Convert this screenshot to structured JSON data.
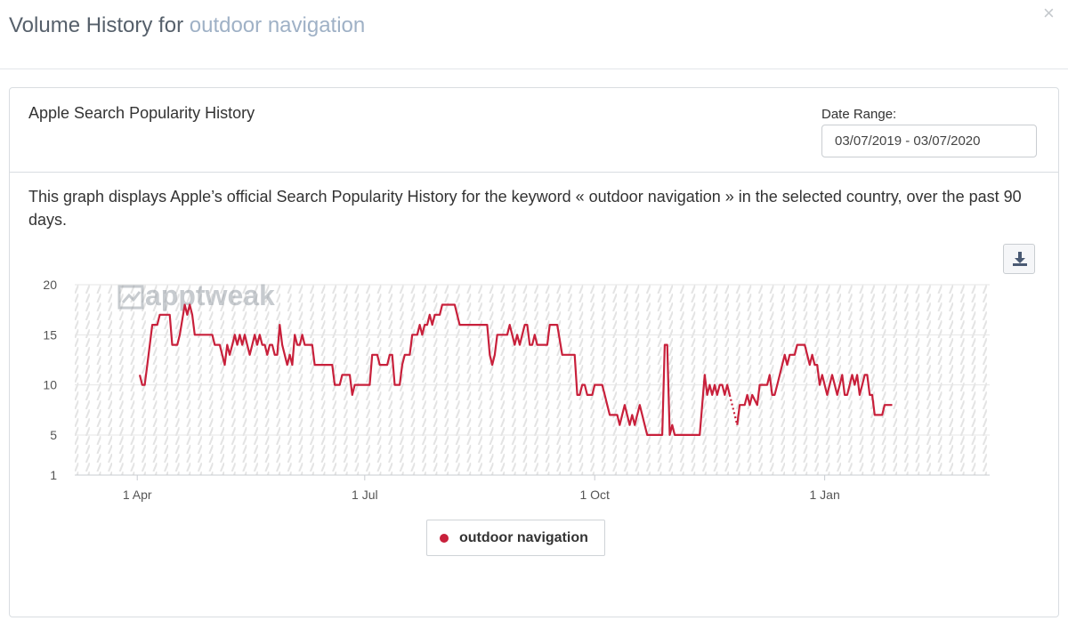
{
  "modal": {
    "title_prefix": "Volume History for",
    "keyword": "outdoor navigation",
    "close_glyph": "×"
  },
  "panel": {
    "title": "Apple Search Popularity History",
    "date_range_label": "Date Range:",
    "date_range_value": "03/07/2019 - 03/07/2020",
    "description": "This graph displays Apple’s official Search Popularity History for the keyword « outdoor navigation » in the selected country, over the past 90 days.",
    "download_icon": "download-icon"
  },
  "watermark": "apptweak",
  "chart_data": {
    "type": "line",
    "x_ticks": [
      {
        "date": "2019-04-01",
        "label": "1 Apr"
      },
      {
        "date": "2019-07-01",
        "label": "1 Jul"
      },
      {
        "date": "2019-10-01",
        "label": "1 Oct"
      },
      {
        "date": "2020-01-01",
        "label": "1 Jan"
      }
    ],
    "y_ticks": [
      1,
      5,
      10,
      15,
      20
    ],
    "ylim": [
      1,
      20
    ],
    "xlim": [
      "2019-03-07",
      "2020-03-07"
    ],
    "grid": "horizontal",
    "legend_position": "bottom-center",
    "series": [
      {
        "name": "outdoor navigation",
        "color": "#c8203b",
        "points": [
          [
            "2019-04-02",
            11
          ],
          [
            "2019-04-03",
            10
          ],
          [
            "2019-04-04",
            10
          ],
          [
            "2019-04-05",
            12
          ],
          [
            "2019-04-07",
            16
          ],
          [
            "2019-04-09",
            16
          ],
          [
            "2019-04-10",
            17
          ],
          [
            "2019-04-14",
            17
          ],
          [
            "2019-04-15",
            14
          ],
          [
            "2019-04-17",
            14
          ],
          [
            "2019-04-18",
            15
          ],
          [
            "2019-04-20",
            18
          ],
          [
            "2019-04-21",
            17
          ],
          [
            "2019-04-22",
            18
          ],
          [
            "2019-04-23",
            17
          ],
          [
            "2019-04-24",
            15
          ],
          [
            "2019-05-01",
            15
          ],
          [
            "2019-05-02",
            14
          ],
          [
            "2019-05-04",
            14
          ],
          [
            "2019-05-05",
            13
          ],
          [
            "2019-05-06",
            12
          ],
          [
            "2019-05-07",
            14
          ],
          [
            "2019-05-08",
            13
          ],
          [
            "2019-05-09",
            14
          ],
          [
            "2019-05-10",
            15
          ],
          [
            "2019-05-11",
            14
          ],
          [
            "2019-05-12",
            15
          ],
          [
            "2019-05-13",
            14
          ],
          [
            "2019-05-14",
            15
          ],
          [
            "2019-05-15",
            14
          ],
          [
            "2019-05-16",
            13
          ],
          [
            "2019-05-17",
            14
          ],
          [
            "2019-05-18",
            15
          ],
          [
            "2019-05-19",
            14
          ],
          [
            "2019-05-20",
            15
          ],
          [
            "2019-05-21",
            14
          ],
          [
            "2019-05-22",
            14
          ],
          [
            "2019-05-23",
            13
          ],
          [
            "2019-05-24",
            14
          ],
          [
            "2019-05-25",
            14
          ],
          [
            "2019-05-26",
            13
          ],
          [
            "2019-05-27",
            13
          ],
          [
            "2019-05-28",
            16
          ],
          [
            "2019-05-29",
            14
          ],
          [
            "2019-05-30",
            13
          ],
          [
            "2019-05-31",
            12
          ],
          [
            "2019-06-01",
            13
          ],
          [
            "2019-06-02",
            12
          ],
          [
            "2019-06-03",
            15
          ],
          [
            "2019-06-04",
            14
          ],
          [
            "2019-06-05",
            14
          ],
          [
            "2019-06-06",
            15
          ],
          [
            "2019-06-07",
            14
          ],
          [
            "2019-06-10",
            14
          ],
          [
            "2019-06-11",
            12
          ],
          [
            "2019-06-18",
            12
          ],
          [
            "2019-06-19",
            10
          ],
          [
            "2019-06-21",
            10
          ],
          [
            "2019-06-22",
            11
          ],
          [
            "2019-06-25",
            11
          ],
          [
            "2019-06-26",
            9
          ],
          [
            "2019-06-27",
            10
          ],
          [
            "2019-07-03",
            10
          ],
          [
            "2019-07-04",
            13
          ],
          [
            "2019-07-06",
            13
          ],
          [
            "2019-07-07",
            12
          ],
          [
            "2019-07-10",
            12
          ],
          [
            "2019-07-11",
            13
          ],
          [
            "2019-07-12",
            13
          ],
          [
            "2019-07-13",
            10
          ],
          [
            "2019-07-15",
            10
          ],
          [
            "2019-07-16",
            12
          ],
          [
            "2019-07-17",
            13
          ],
          [
            "2019-07-19",
            13
          ],
          [
            "2019-07-20",
            15
          ],
          [
            "2019-07-22",
            15
          ],
          [
            "2019-07-23",
            16
          ],
          [
            "2019-07-24",
            15
          ],
          [
            "2019-07-25",
            16
          ],
          [
            "2019-07-26",
            16
          ],
          [
            "2019-07-27",
            17
          ],
          [
            "2019-07-28",
            16
          ],
          [
            "2019-07-29",
            17
          ],
          [
            "2019-07-31",
            17
          ],
          [
            "2019-08-01",
            18
          ],
          [
            "2019-08-06",
            18
          ],
          [
            "2019-08-07",
            17
          ],
          [
            "2019-08-08",
            16
          ],
          [
            "2019-08-19",
            16
          ],
          [
            "2019-08-20",
            13
          ],
          [
            "2019-08-21",
            12
          ],
          [
            "2019-08-22",
            13
          ],
          [
            "2019-08-23",
            15
          ],
          [
            "2019-08-27",
            15
          ],
          [
            "2019-08-28",
            16
          ],
          [
            "2019-08-29",
            15
          ],
          [
            "2019-08-30",
            14
          ],
          [
            "2019-08-31",
            15
          ],
          [
            "2019-09-01",
            14
          ],
          [
            "2019-09-02",
            15
          ],
          [
            "2019-09-03",
            16
          ],
          [
            "2019-09-04",
            16
          ],
          [
            "2019-09-05",
            14
          ],
          [
            "2019-09-06",
            14
          ],
          [
            "2019-09-07",
            15
          ],
          [
            "2019-09-08",
            14
          ],
          [
            "2019-09-12",
            14
          ],
          [
            "2019-09-13",
            16
          ],
          [
            "2019-09-16",
            16
          ],
          [
            "2019-09-18",
            13
          ],
          [
            "2019-09-23",
            13
          ],
          [
            "2019-09-24",
            9
          ],
          [
            "2019-09-25",
            9
          ],
          [
            "2019-09-26",
            10
          ],
          [
            "2019-09-27",
            10
          ],
          [
            "2019-09-28",
            9
          ],
          [
            "2019-09-30",
            9
          ],
          [
            "2019-10-01",
            10
          ],
          [
            "2019-10-04",
            10
          ],
          [
            "2019-10-05",
            9
          ],
          [
            "2019-10-06",
            8
          ],
          [
            "2019-10-07",
            7
          ],
          [
            "2019-10-10",
            7
          ],
          [
            "2019-10-11",
            6
          ],
          [
            "2019-10-12",
            7
          ],
          [
            "2019-10-13",
            8
          ],
          [
            "2019-10-14",
            7
          ],
          [
            "2019-10-15",
            6
          ],
          [
            "2019-10-16",
            7
          ],
          [
            "2019-10-17",
            6
          ],
          [
            "2019-10-18",
            7
          ],
          [
            "2019-10-19",
            8
          ],
          [
            "2019-10-20",
            7
          ],
          [
            "2019-10-21",
            6
          ],
          [
            "2019-10-22",
            5
          ],
          [
            "2019-10-28",
            5
          ],
          [
            "2019-10-29",
            14
          ],
          [
            "2019-10-30",
            14
          ],
          [
            "2019-10-31",
            5
          ],
          [
            "2019-11-01",
            6
          ],
          [
            "2019-11-02",
            5
          ],
          [
            "2019-11-12",
            5
          ],
          [
            "2019-11-14",
            11
          ],
          [
            "2019-11-15",
            9
          ],
          [
            "2019-11-16",
            10
          ],
          [
            "2019-11-17",
            9
          ],
          [
            "2019-11-18",
            10
          ],
          [
            "2019-11-19",
            9
          ],
          [
            "2019-11-20",
            10
          ],
          [
            "2019-11-21",
            10
          ],
          [
            "2019-11-22",
            9
          ],
          [
            "2019-11-23",
            10
          ],
          [
            "2019-11-24",
            9
          ]
        ],
        "gap_segment": [
          [
            "2019-11-24",
            9
          ],
          [
            "2019-11-25",
            8
          ],
          [
            "2019-11-26",
            7
          ],
          [
            "2019-11-27",
            6
          ]
        ],
        "points_after_gap": [
          [
            "2019-11-27",
            6
          ],
          [
            "2019-11-28",
            8
          ],
          [
            "2019-11-30",
            8
          ],
          [
            "2019-12-01",
            9
          ],
          [
            "2019-12-02",
            8
          ],
          [
            "2019-12-03",
            9
          ],
          [
            "2019-12-05",
            8
          ],
          [
            "2019-12-06",
            10
          ],
          [
            "2019-12-09",
            10
          ],
          [
            "2019-12-10",
            11
          ],
          [
            "2019-12-11",
            9
          ],
          [
            "2019-12-12",
            9
          ],
          [
            "2019-12-13",
            10
          ],
          [
            "2019-12-14",
            11
          ],
          [
            "2019-12-15",
            12
          ],
          [
            "2019-12-16",
            13
          ],
          [
            "2019-12-17",
            12
          ],
          [
            "2019-12-18",
            13
          ],
          [
            "2019-12-20",
            13
          ],
          [
            "2019-12-21",
            14
          ],
          [
            "2019-12-24",
            14
          ],
          [
            "2019-12-25",
            13
          ],
          [
            "2019-12-26",
            12
          ],
          [
            "2019-12-27",
            13
          ],
          [
            "2019-12-28",
            12
          ],
          [
            "2019-12-29",
            12
          ],
          [
            "2019-12-30",
            10
          ],
          [
            "2019-12-31",
            11
          ],
          [
            "2020-01-01",
            10
          ],
          [
            "2020-01-02",
            9
          ],
          [
            "2020-01-03",
            10
          ],
          [
            "2020-01-04",
            11
          ],
          [
            "2020-01-05",
            10
          ],
          [
            "2020-01-06",
            9
          ],
          [
            "2020-01-07",
            10
          ],
          [
            "2020-01-08",
            11
          ],
          [
            "2020-01-09",
            9
          ],
          [
            "2020-01-10",
            9
          ],
          [
            "2020-01-11",
            10
          ],
          [
            "2020-01-12",
            11
          ],
          [
            "2020-01-13",
            10
          ],
          [
            "2020-01-14",
            11
          ],
          [
            "2020-01-15",
            9
          ],
          [
            "2020-01-16",
            10
          ],
          [
            "2020-01-17",
            11
          ],
          [
            "2020-01-18",
            11
          ],
          [
            "2020-01-19",
            9
          ],
          [
            "2020-01-20",
            9
          ],
          [
            "2020-01-21",
            7
          ],
          [
            "2020-01-24",
            7
          ],
          [
            "2020-01-25",
            8
          ],
          [
            "2020-01-28",
            8
          ]
        ]
      }
    ]
  }
}
